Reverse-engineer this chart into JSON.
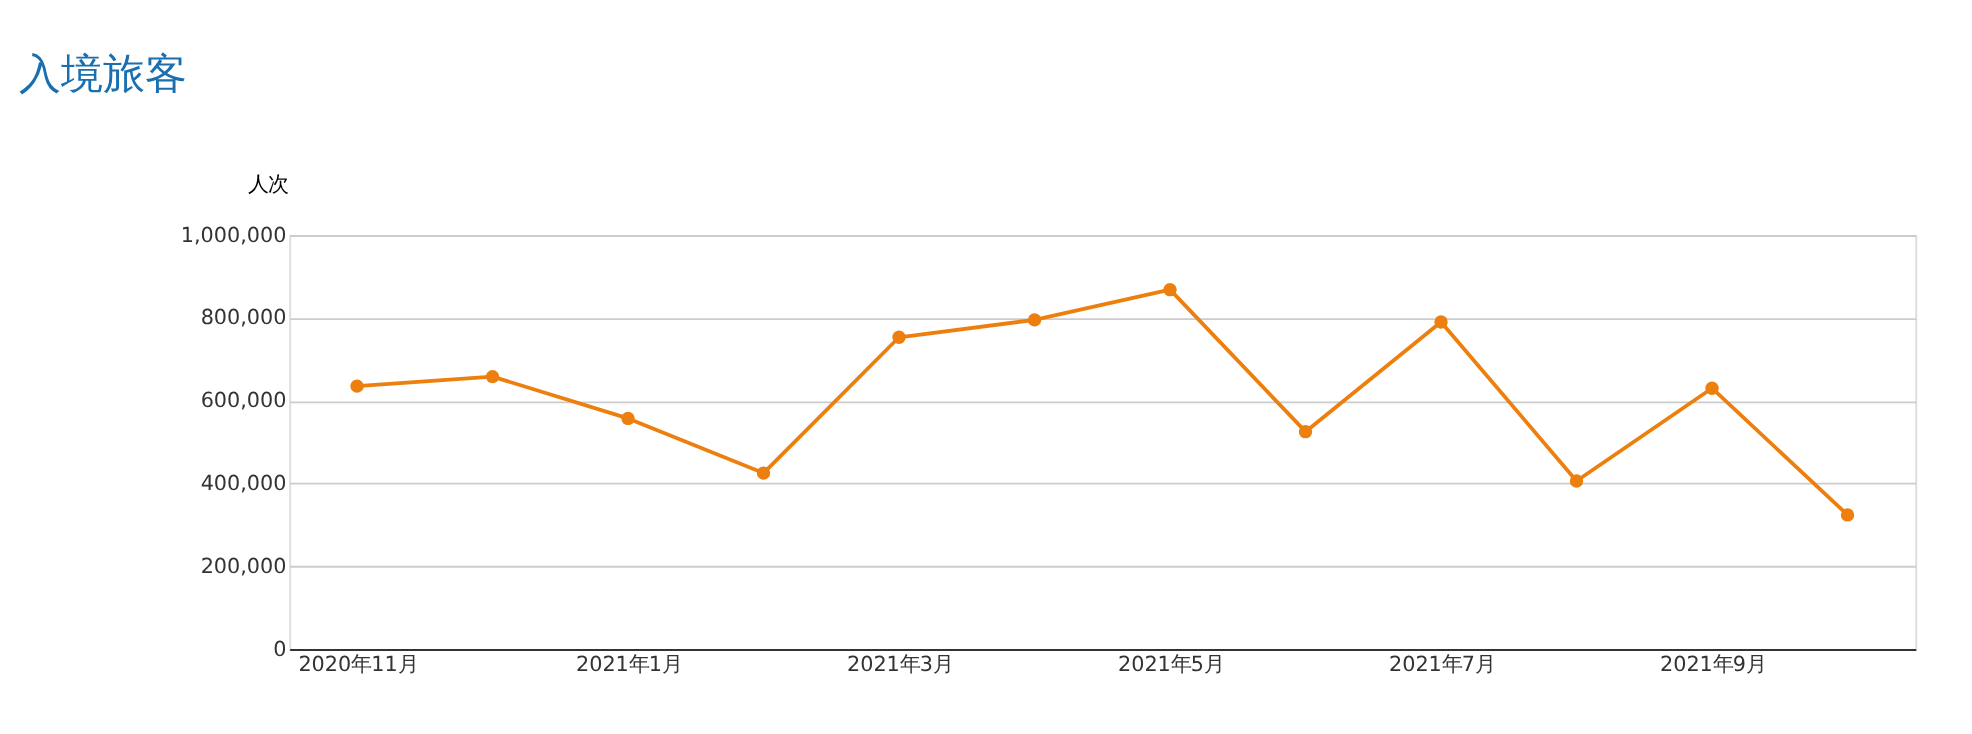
{
  "chart_data": {
    "type": "line",
    "title": "入境旅客",
    "ylabel": "人次",
    "categories": [
      "2020年11月",
      null,
      "2021年1月",
      null,
      "2021年3月",
      null,
      "2021年5月",
      null,
      "2021年7月",
      null,
      "2021年9月",
      null
    ],
    "series": [
      {
        "color": "#ec7f0e",
        "values": [
          635000,
          658000,
          557000,
          425000,
          753000,
          795000,
          868000,
          525000,
          790000,
          406000,
          630000,
          324000
        ]
      }
    ],
    "ylim": [
      0,
      1000000
    ],
    "yticks": [
      {
        "value": 0,
        "label": "0"
      },
      {
        "value": 200000,
        "label": "200,000"
      },
      {
        "value": 400000,
        "label": "400,000"
      },
      {
        "value": 600000,
        "label": "600,000"
      },
      {
        "value": 800000,
        "label": "800,000"
      },
      {
        "value": 1000000,
        "label": "1,000,000"
      }
    ],
    "grid": "y",
    "marker": "circle",
    "line_style": "solid"
  }
}
